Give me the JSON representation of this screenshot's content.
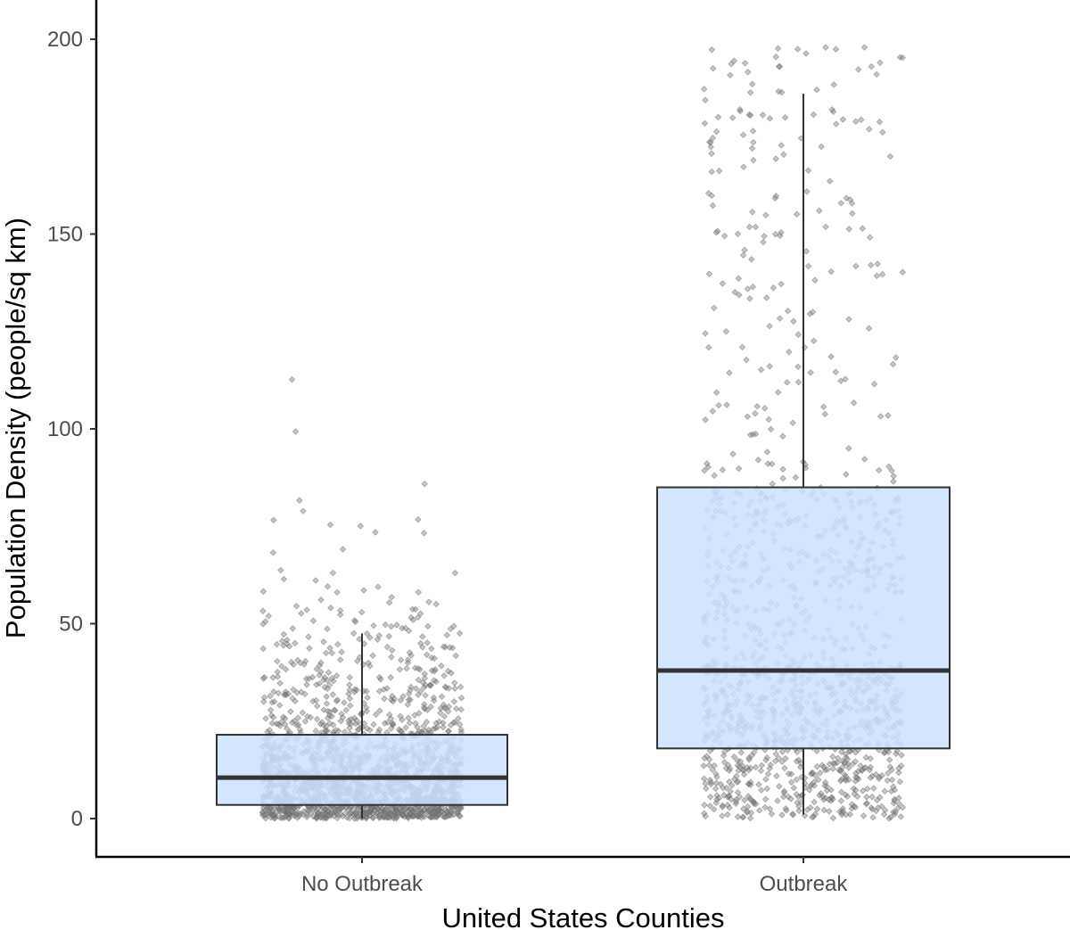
{
  "chart_data": {
    "type": "box",
    "xlabel": "United States Counties",
    "ylabel": "Population Density (people/sq km)",
    "categories": [
      "No Outbreak",
      "Outbreak"
    ],
    "ylim": [
      -10,
      210
    ],
    "yticks": [
      0,
      50,
      100,
      150,
      200
    ],
    "grid": false,
    "legend": "none",
    "box_fill": "#cce0ff",
    "box_stroke": "#333333",
    "point_color": "#808080",
    "boxes": [
      {
        "category": "No Outbreak",
        "lower_whisker": 0,
        "q1": 3.5,
        "median": 10.5,
        "q3": 21.5,
        "upper_whisker": 47.5
      },
      {
        "category": "Outbreak",
        "lower_whisker": 1,
        "q1": 18,
        "median": 38,
        "q3": 85,
        "upper_whisker": 186
      }
    ],
    "points_note_counts": [
      1800,
      1300
    ]
  }
}
